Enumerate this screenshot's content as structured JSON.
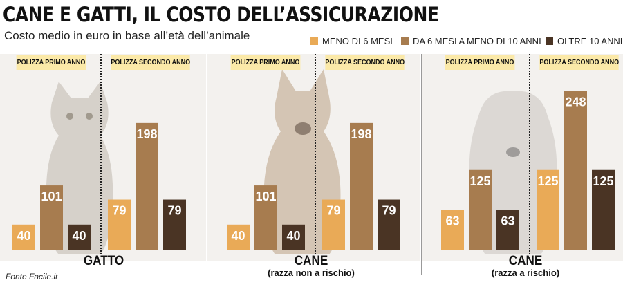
{
  "header": {
    "title": "CANE E GATTI, IL COSTO DELL’ASSICURAZIONE",
    "subtitle": "Costo medio in euro in base all’età dell’animale"
  },
  "legend": [
    {
      "label": "MENO DI 6 MESI",
      "color": "#e9aa57"
    },
    {
      "label": "DA 6 MESI  A MENO DI 10 ANNI",
      "color": "#a77c4f"
    },
    {
      "label": "OLTRE 10 ANNI",
      "color": "#4a3424"
    }
  ],
  "source": "Fonte Facile.it",
  "chart_data": [
    {
      "type": "bar",
      "title": "GATTO",
      "subtitle": "",
      "groups": [
        "POLIZZA PRIMO ANNO",
        "POLIZZA SECONDO ANNO"
      ],
      "series": [
        {
          "name": "MENO DI 6 MESI",
          "values": [
            40,
            79
          ]
        },
        {
          "name": "DA 6 MESI  A MENO DI 10 ANNI",
          "values": [
            101,
            198
          ]
        },
        {
          "name": "OLTRE 10 ANNI",
          "values": [
            40,
            79
          ]
        }
      ],
      "ylim": [
        0,
        260
      ]
    },
    {
      "type": "bar",
      "title": "CANE",
      "subtitle": "(razza non a rischio)",
      "groups": [
        "POLIZZA PRIMO ANNO",
        "POLIZZA SECONDO ANNO"
      ],
      "series": [
        {
          "name": "MENO DI 6 MESI",
          "values": [
            40,
            79
          ]
        },
        {
          "name": "DA 6 MESI  A MENO DI 10 ANNI",
          "values": [
            101,
            198
          ]
        },
        {
          "name": "OLTRE 10 ANNI",
          "values": [
            40,
            79
          ]
        }
      ],
      "ylim": [
        0,
        260
      ]
    },
    {
      "type": "bar",
      "title": "CANE",
      "subtitle": "(razza a rischio)",
      "groups": [
        "POLIZZA PRIMO ANNO",
        "POLIZZA SECONDO ANNO"
      ],
      "series": [
        {
          "name": "MENO DI 6 MESI",
          "values": [
            63,
            125
          ]
        },
        {
          "name": "DA 6 MESI  A MENO DI 10 ANNI",
          "values": [
            125,
            248
          ]
        },
        {
          "name": "OLTRE 10 ANNI",
          "values": [
            63,
            125
          ]
        }
      ],
      "ylim": [
        0,
        260
      ]
    }
  ]
}
